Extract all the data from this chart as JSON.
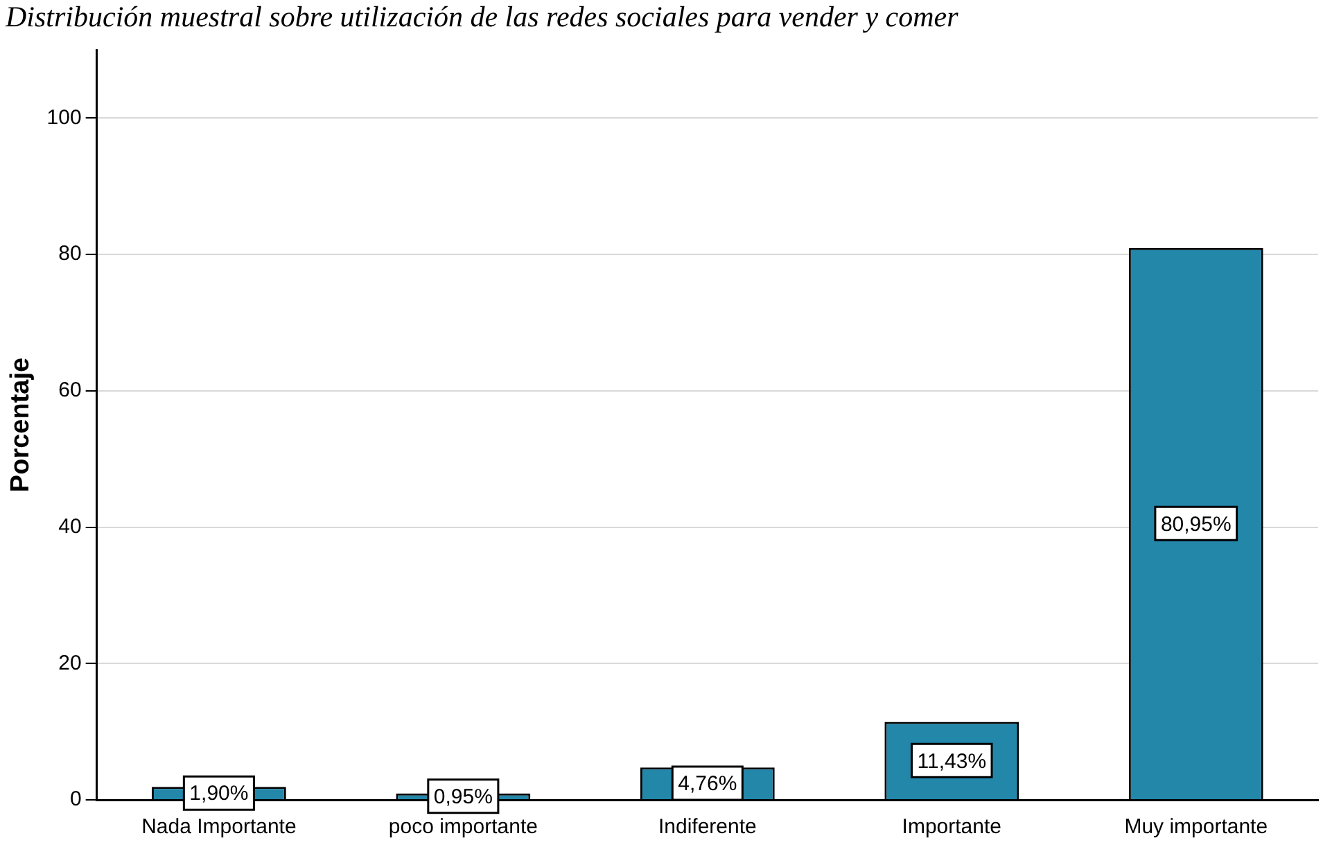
{
  "chart_data": {
    "type": "bar",
    "title": "Distribución muestral sobre utilización de las redes sociales para vender y comer",
    "ylabel": "Porcentaje",
    "categories": [
      "Nada Importante",
      "poco importante",
      "Indiferente",
      "Importante",
      "Muy importante"
    ],
    "values": [
      1.9,
      0.95,
      4.76,
      11.43,
      80.95
    ],
    "value_labels": [
      "1,90%",
      "0,95%",
      "4,76%",
      "11,43%",
      "80,95%"
    ],
    "color": "#2387aa",
    "ylim": [
      0,
      110
    ],
    "yticks": [
      0,
      20,
      40,
      60,
      80,
      100
    ],
    "grid": "y",
    "legend": false
  }
}
